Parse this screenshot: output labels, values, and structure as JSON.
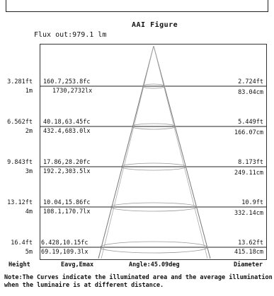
{
  "figure": {
    "title": "AAI  Figure",
    "flux": "Flux out:979.1 lm"
  },
  "rows": [
    {
      "height_ft": "3.281ft",
      "height_m": "1m",
      "eval": "160.7,253.8fc",
      "elux": "1730,2732lx",
      "diam_ft": "2.724ft",
      "diam_cm": "83.04cm"
    },
    {
      "height_ft": "6.562ft",
      "height_m": "2m",
      "eval": "40.18,63.45fc",
      "elux": "432.4,683.0lx",
      "diam_ft": "5.449ft",
      "diam_cm": "166.07cm"
    },
    {
      "height_ft": "9.843ft",
      "height_m": "3m",
      "eval": "17.86,28.20fc",
      "elux": "192.2,303.5lx",
      "diam_ft": "8.173ft",
      "diam_cm": "249.11cm"
    },
    {
      "height_ft": "13.12ft",
      "height_m": "4m",
      "eval": "10.04,15.86fc",
      "elux": "108.1,170.7lx",
      "diam_ft": "10.9ft",
      "diam_cm": "332.14cm"
    },
    {
      "height_ft": "16.4ft",
      "height_m": "5m",
      "eval": "6.428,10.15fc",
      "elux": "69.19,109.3lx",
      "diam_ft": "13.62ft",
      "diam_cm": "415.18cm"
    }
  ],
  "footer": {
    "height": "Height",
    "eavg": "Eavg,Emax",
    "angle": "Angle:45.09deg",
    "diameter": "Diameter"
  },
  "note": "Note:The Curves indicate the illuminated area and the average illumination when the luminaire is at different distance."
}
